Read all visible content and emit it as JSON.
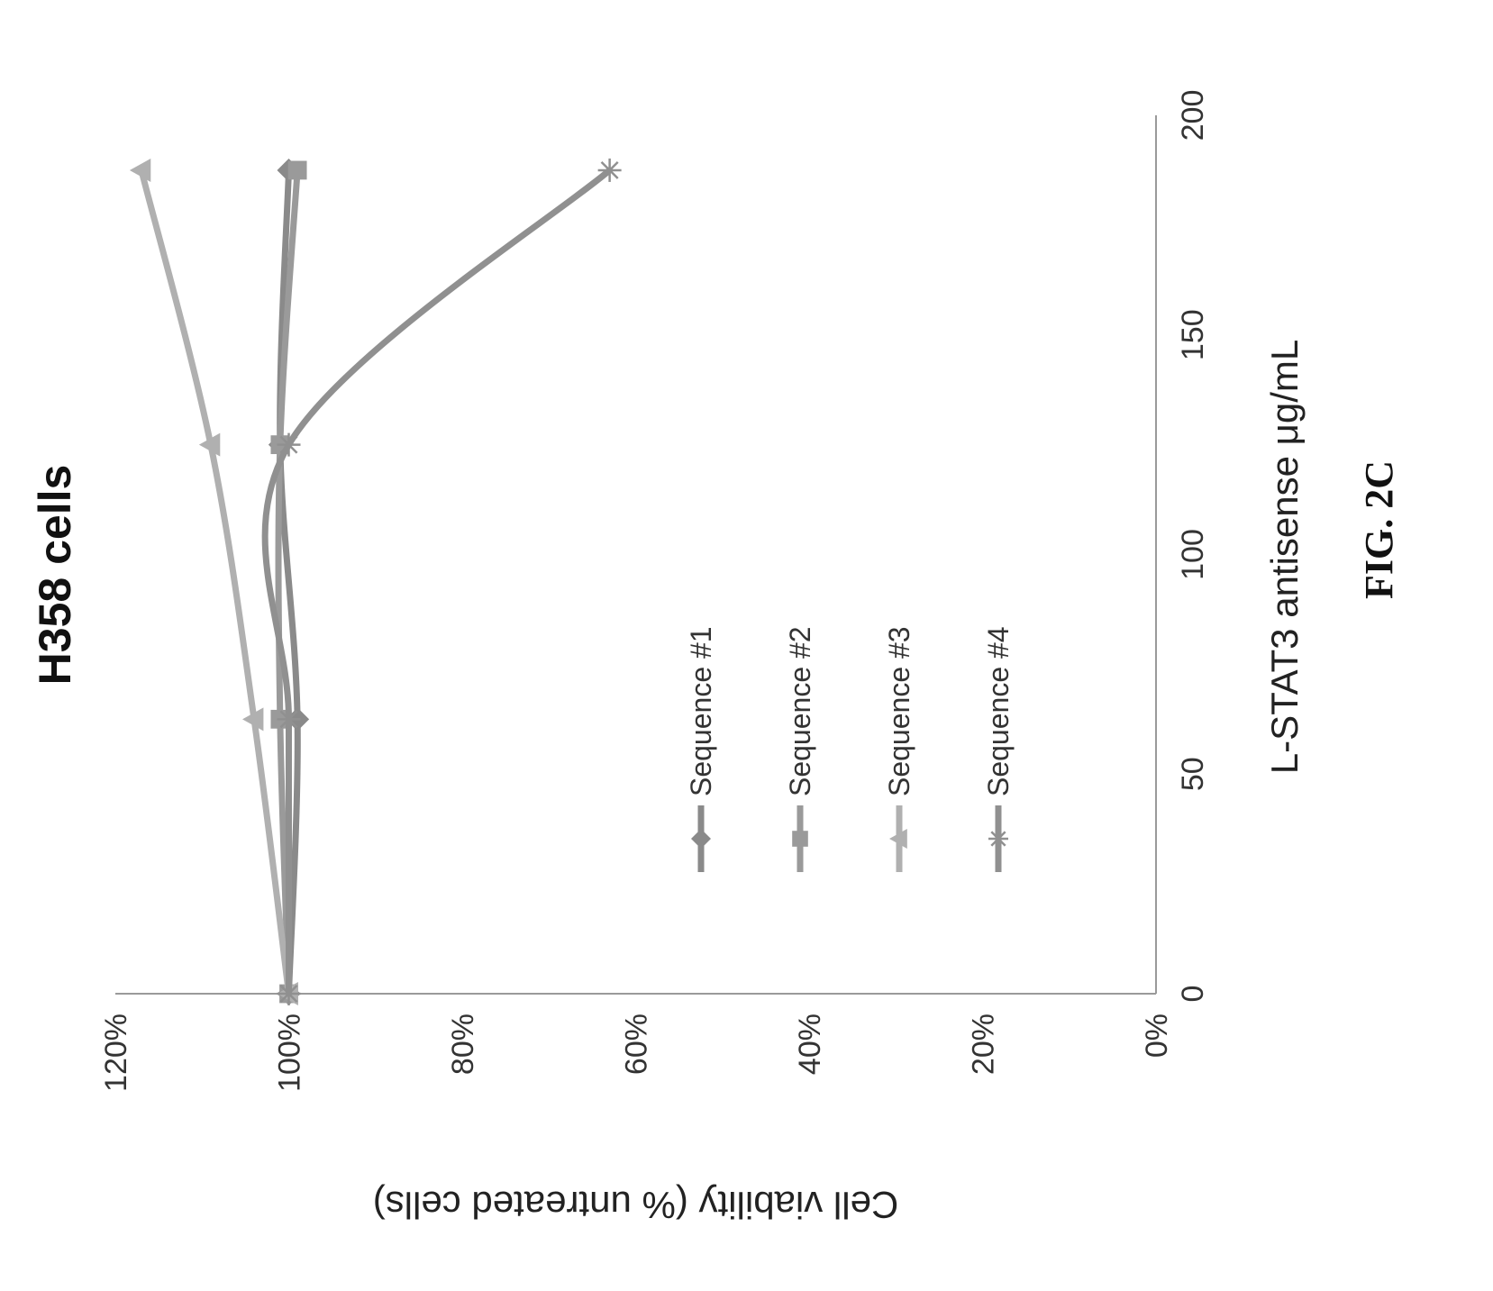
{
  "figure_caption": "FIG. 2C",
  "chart_data": {
    "type": "line",
    "title": "H358 cells",
    "xlabel": "L-STAT3 antisense μg/mL",
    "ylabel": "Cell viability (% untreated cells)",
    "xlim": [
      0,
      200
    ],
    "ylim": [
      0,
      1.2
    ],
    "x_ticks": [
      0,
      50,
      100,
      150,
      200
    ],
    "x_tick_labels": [
      "0",
      "50",
      "100",
      "150",
      "200"
    ],
    "y_ticks": [
      0,
      0.2,
      0.4,
      0.6,
      0.8,
      1.0,
      1.2
    ],
    "y_tick_labels": [
      "0%",
      "20%",
      "40%",
      "60%",
      "80%",
      "100%",
      "120%"
    ],
    "grid": false,
    "legend_position": "center",
    "x": [
      0,
      62.5,
      125,
      187.5
    ],
    "series": [
      {
        "name": "Sequence #1",
        "values": [
          1.0,
          0.99,
          1.01,
          1.0
        ],
        "marker": "diamond",
        "color": "#8a8a8a"
      },
      {
        "name": "Sequence #2",
        "values": [
          1.0,
          1.01,
          1.01,
          0.99
        ],
        "marker": "square",
        "color": "#9a9a9a"
      },
      {
        "name": "Sequence #3",
        "values": [
          1.0,
          1.04,
          1.09,
          1.17
        ],
        "marker": "triangle",
        "color": "#b0b0b0"
      },
      {
        "name": "Sequence #4",
        "values": [
          1.0,
          1.0,
          1.0,
          0.63
        ],
        "marker": "star",
        "color": "#909090"
      }
    ]
  }
}
